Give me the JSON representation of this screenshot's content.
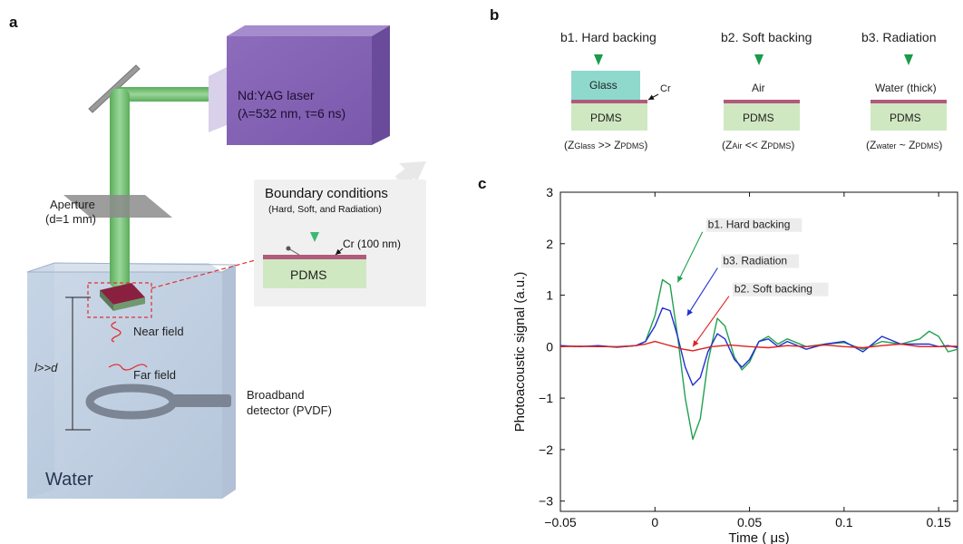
{
  "panel_letters": {
    "a": "a",
    "b": "b",
    "c": "c"
  },
  "panel_a": {
    "laser_title": "Nd:YAG laser",
    "laser_params": "(λ=532 nm, τ=6 ns)",
    "aperture_label": "Aperture",
    "aperture_size": "(d=1 mm)",
    "distance_label": "l>>d",
    "near_field": "Near field",
    "far_field": "Far field",
    "detector_label": "Broadband",
    "detector_type": "detector (PVDF)",
    "water_label": "Water",
    "inset": {
      "title": "Boundary conditions",
      "subtitle": "(Hard, Soft, and Radiation)",
      "cr_label": "Cr (100 nm)",
      "pdms_label": "PDMS"
    }
  },
  "panel_b": {
    "items": [
      {
        "title": "b1. Hard backing",
        "backing": "Glass",
        "cr": "Cr",
        "pdms": "PDMS",
        "z_left": "Glass",
        "z_op": ">>",
        "z_right": "PDMS"
      },
      {
        "title": "b2. Soft backing",
        "backing": "Air",
        "pdms": "PDMS",
        "z_left": "Air",
        "z_op": "<<",
        "z_right": "PDMS"
      },
      {
        "title": "b3. Radiation",
        "backing": "Water (thick)",
        "pdms": "PDMS",
        "z_left": "water",
        "z_op": "~",
        "z_right": "PDMS"
      }
    ],
    "z_symbol": "Z"
  },
  "colors": {
    "laser_purple": "#8a64b6",
    "beam_green": "#7cc47c",
    "water_blue": "#b4c6dc",
    "pdms_green": "#cfe8c1",
    "cr_red": "#b05a7c",
    "glass_teal": "#8fd8cc",
    "marker_green": "#1a9a4a"
  },
  "chart_data": {
    "type": "line",
    "xlabel": "Time ( μs)",
    "ylabel": "Photoacoustic signal (a.u.)",
    "xlim": [
      -0.05,
      0.16
    ],
    "ylim": [
      -3.2,
      3
    ],
    "xticks": [
      -0.05,
      0,
      0.05,
      0.1,
      0.15
    ],
    "xtick_labels": [
      "−0.05",
      "0",
      "0.05",
      "0.1",
      "0.15"
    ],
    "yticks": [
      -3,
      -2,
      -1,
      0,
      1,
      2,
      3
    ],
    "ytick_labels": [
      "−3",
      "−2",
      "−1",
      "0",
      "1",
      "2",
      "3"
    ],
    "grid": false,
    "series": [
      {
        "name": "b1. Hard backing",
        "color": "#20a050",
        "x": [
          -0.05,
          -0.04,
          -0.03,
          -0.02,
          -0.01,
          -0.005,
          0,
          0.004,
          0.008,
          0.012,
          0.016,
          0.02,
          0.024,
          0.028,
          0.033,
          0.037,
          0.042,
          0.046,
          0.05,
          0.055,
          0.06,
          0.065,
          0.07,
          0.08,
          0.09,
          0.1,
          0.11,
          0.12,
          0.13,
          0.14,
          0.145,
          0.15,
          0.155,
          0.16
        ],
        "y": [
          0.02,
          0,
          0.01,
          -0.01,
          0.02,
          0.1,
          0.6,
          1.3,
          1.2,
          0.2,
          -1.0,
          -1.8,
          -1.4,
          -0.3,
          0.55,
          0.4,
          -0.2,
          -0.45,
          -0.3,
          0.1,
          0.2,
          0.05,
          0.15,
          0,
          0.05,
          0.08,
          -0.05,
          0.1,
          0.05,
          0.15,
          0.3,
          0.2,
          -0.1,
          -0.05
        ]
      },
      {
        "name": "b3. Radiation",
        "color": "#2030d0",
        "x": [
          -0.05,
          -0.04,
          -0.03,
          -0.02,
          -0.01,
          -0.005,
          0,
          0.004,
          0.008,
          0.012,
          0.016,
          0.02,
          0.024,
          0.028,
          0.033,
          0.037,
          0.042,
          0.046,
          0.05,
          0.055,
          0.06,
          0.065,
          0.07,
          0.08,
          0.09,
          0.1,
          0.11,
          0.12,
          0.13,
          0.14,
          0.145,
          0.15,
          0.155,
          0.16
        ],
        "y": [
          0.02,
          0,
          0.02,
          -0.01,
          0.02,
          0.1,
          0.4,
          0.75,
          0.7,
          0.2,
          -0.4,
          -0.75,
          -0.6,
          -0.1,
          0.25,
          0.15,
          -0.25,
          -0.4,
          -0.25,
          0.1,
          0.15,
          0,
          0.1,
          -0.05,
          0.05,
          0.1,
          -0.1,
          0.2,
          0.05,
          0.05,
          0.05,
          0,
          0.02,
          -0.02
        ]
      },
      {
        "name": "b2. Soft backing",
        "color": "#e02020",
        "x": [
          -0.05,
          -0.04,
          -0.03,
          -0.02,
          -0.01,
          -0.005,
          0,
          0.005,
          0.01,
          0.015,
          0.02,
          0.025,
          0.03,
          0.04,
          0.05,
          0.06,
          0.07,
          0.08,
          0.09,
          0.1,
          0.11,
          0.12,
          0.13,
          0.14,
          0.15,
          0.16
        ],
        "y": [
          0,
          0.01,
          0,
          0,
          0.02,
          0.05,
          0.1,
          0.05,
          0,
          -0.05,
          -0.08,
          -0.04,
          0,
          0.03,
          0,
          -0.02,
          0.02,
          0,
          0.03,
          0,
          -0.02,
          0.02,
          0.05,
          0,
          0,
          0.01
        ]
      }
    ],
    "annotations": [
      {
        "text": "b1. Hard backing",
        "color": "#20a050",
        "text_x": 0.028,
        "text_y": 2.3,
        "arrow_x": 0.012,
        "arrow_y": 1.25
      },
      {
        "text": "b3. Radiation",
        "color": "#2030d0",
        "text_x": 0.036,
        "text_y": 1.6,
        "arrow_x": 0.017,
        "arrow_y": 0.6
      },
      {
        "text": "b2. Soft backing",
        "color": "#e02020",
        "text_x": 0.042,
        "text_y": 1.05,
        "arrow_x": 0.02,
        "arrow_y": 0.0
      }
    ]
  }
}
